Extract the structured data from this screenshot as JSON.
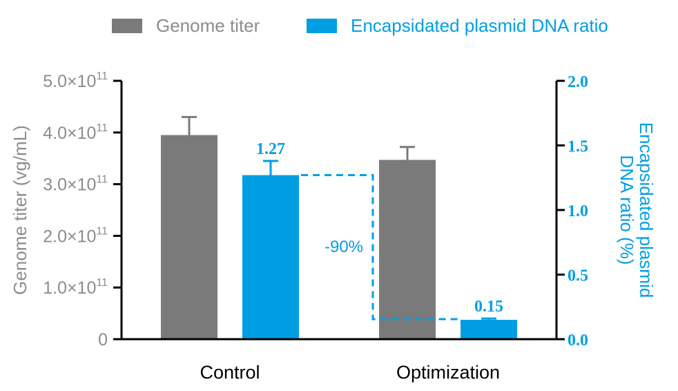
{
  "chart_data": {
    "type": "bar",
    "categories": [
      "Control",
      "Optimization"
    ],
    "series": [
      {
        "name": "Genome titer",
        "axis": "left",
        "color": "#7a7a7a",
        "values": [
          395000000000.0,
          347000000000.0
        ],
        "errors": [
          35000000000.0,
          25000000000.0
        ]
      },
      {
        "name": "Encapsidated plasmid DNA ratio",
        "axis": "right",
        "color": "#009fe3",
        "values": [
          1.27,
          0.15
        ],
        "errors": [
          0.11,
          0.01
        ],
        "data_labels": [
          "1.27",
          "0.15"
        ]
      }
    ],
    "y_left": {
      "label": "Genome titer (vg/mL)",
      "range": [
        0,
        500000000000.0
      ],
      "ticks": [
        0,
        100000000000.0,
        200000000000.0,
        300000000000.0,
        400000000000.0,
        500000000000.0
      ],
      "tick_labels": [
        {
          "mantissa": "0",
          "sup": ""
        },
        {
          "mantissa": "1.0×10",
          "sup": "11"
        },
        {
          "mantissa": "2.0×10",
          "sup": "11"
        },
        {
          "mantissa": "3.0×10",
          "sup": "11"
        },
        {
          "mantissa": "4.0×10",
          "sup": "11"
        },
        {
          "mantissa": "5.0×10",
          "sup": "11"
        }
      ],
      "color": "#8c8c8c"
    },
    "y_right": {
      "label_lines": [
        "Encapsidated plasmid",
        "DNA ratio (%)"
      ],
      "range": [
        0,
        2.0
      ],
      "ticks": [
        0,
        0.5,
        1.0,
        1.5,
        2.0
      ],
      "tick_labels": [
        "0.0",
        "0.5",
        "1.0",
        "1.5",
        "2.0"
      ],
      "color": "#009fe3"
    },
    "annotation": {
      "text": "-90%",
      "from_value": 1.27,
      "to_value": 0.15,
      "color": "#009fe3"
    },
    "legend": {
      "placement": "top",
      "entries": [
        "Genome titer",
        "Encapsidated plasmid DNA ratio"
      ]
    },
    "grid": false
  }
}
